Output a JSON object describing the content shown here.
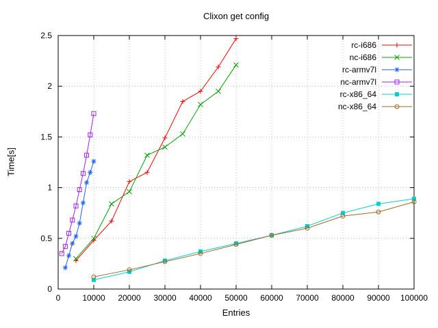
{
  "title": "Clixon get config",
  "chart_data": {
    "type": "line",
    "title": "Clixon get config",
    "xlabel": "Entries",
    "ylabel": "Time[s]",
    "xlim": [
      0,
      100000
    ],
    "ylim": [
      0,
      2.5
    ],
    "x_ticks": [
      0,
      10000,
      20000,
      30000,
      40000,
      50000,
      60000,
      70000,
      80000,
      90000,
      100000
    ],
    "y_ticks": [
      0,
      0.5,
      1,
      1.5,
      2,
      2.5
    ],
    "grid": true,
    "legend_position": "top-right-inside",
    "series": [
      {
        "name": "rc-i686",
        "color": "#ff0000",
        "marker": "plus",
        "points": [
          [
            5000,
            0.28
          ],
          [
            10000,
            0.48
          ],
          [
            15000,
            0.67
          ],
          [
            20000,
            1.06
          ],
          [
            25000,
            1.15
          ],
          [
            30000,
            1.49
          ],
          [
            35000,
            1.85
          ],
          [
            40000,
            1.95
          ],
          [
            45000,
            2.19
          ],
          [
            50000,
            2.47
          ]
        ]
      },
      {
        "name": "nc-i686",
        "color": "#00a000",
        "marker": "cross",
        "points": [
          [
            5000,
            0.3
          ],
          [
            10000,
            0.5
          ],
          [
            15000,
            0.84
          ],
          [
            20000,
            0.96
          ],
          [
            25000,
            1.32
          ],
          [
            30000,
            1.4
          ],
          [
            35000,
            1.53
          ],
          [
            40000,
            1.82
          ],
          [
            45000,
            1.95
          ],
          [
            50000,
            2.21
          ]
        ]
      },
      {
        "name": "rc-armv7l",
        "color": "#2060ff",
        "marker": "asterisk",
        "points": [
          [
            2000,
            0.21
          ],
          [
            3000,
            0.33
          ],
          [
            4000,
            0.45
          ],
          [
            5000,
            0.52
          ],
          [
            6000,
            0.65
          ],
          [
            7000,
            0.85
          ],
          [
            8000,
            1.05
          ],
          [
            9000,
            1.15
          ],
          [
            10000,
            1.26
          ]
        ]
      },
      {
        "name": "nc-armv7l",
        "color": "#a020f0",
        "marker": "square-open",
        "points": [
          [
            1000,
            0.35
          ],
          [
            2000,
            0.42
          ],
          [
            3000,
            0.55
          ],
          [
            4000,
            0.68
          ],
          [
            5000,
            0.82
          ],
          [
            6000,
            0.98
          ],
          [
            7000,
            1.14
          ],
          [
            8000,
            1.32
          ],
          [
            9000,
            1.52
          ],
          [
            10000,
            1.73
          ]
        ]
      },
      {
        "name": "rc-x86_64",
        "color": "#00d0d0",
        "marker": "square-filled",
        "points": [
          [
            10000,
            0.09
          ],
          [
            20000,
            0.17
          ],
          [
            30000,
            0.28
          ],
          [
            40000,
            0.37
          ],
          [
            50000,
            0.45
          ],
          [
            60000,
            0.53
          ],
          [
            70000,
            0.62
          ],
          [
            80000,
            0.75
          ],
          [
            90000,
            0.84
          ],
          [
            100000,
            0.89
          ]
        ]
      },
      {
        "name": "nc-x86_64",
        "color": "#a06820",
        "marker": "circle-open",
        "points": [
          [
            10000,
            0.12
          ],
          [
            20000,
            0.19
          ],
          [
            30000,
            0.27
          ],
          [
            40000,
            0.35
          ],
          [
            50000,
            0.44
          ],
          [
            60000,
            0.53
          ],
          [
            70000,
            0.6
          ],
          [
            80000,
            0.72
          ],
          [
            90000,
            0.76
          ],
          [
            100000,
            0.86
          ]
        ]
      }
    ]
  }
}
